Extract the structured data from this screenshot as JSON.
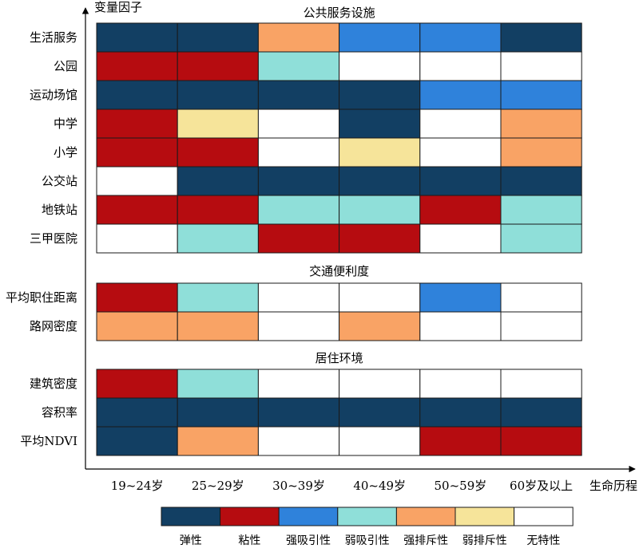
{
  "chart_data": {
    "type": "heatmap",
    "y_axis_label": "变量因子",
    "x_axis_label": "生命历程",
    "columns": [
      "19~24岁",
      "25~29岁",
      "30~39岁",
      "40~49岁",
      "50~59岁",
      "60岁及以上"
    ],
    "legend": [
      {
        "key": "elastic",
        "label": "弹性",
        "color": "#123f63"
      },
      {
        "key": "sticky",
        "label": "粘性",
        "color": "#b60c10"
      },
      {
        "key": "strong_attract",
        "label": "强吸引性",
        "color": "#2f82db"
      },
      {
        "key": "weak_attract",
        "label": "弱吸引性",
        "color": "#8fdfd9"
      },
      {
        "key": "strong_repel",
        "label": "强排斥性",
        "color": "#f9a365"
      },
      {
        "key": "weak_repel",
        "label": "弱排斥性",
        "color": "#f6e49a"
      },
      {
        "key": "none",
        "label": "无特性",
        "color": "#ffffff"
      }
    ],
    "groups": [
      {
        "title": "公共服务设施",
        "rows": [
          {
            "label": "生活服务",
            "values": [
              "elastic",
              "elastic",
              "strong_repel",
              "strong_attract",
              "strong_attract",
              "elastic"
            ]
          },
          {
            "label": "公园",
            "values": [
              "sticky",
              "sticky",
              "weak_attract",
              "none",
              "none",
              "none"
            ]
          },
          {
            "label": "运动场馆",
            "values": [
              "elastic",
              "elastic",
              "elastic",
              "elastic",
              "strong_attract",
              "strong_attract"
            ]
          },
          {
            "label": "中学",
            "values": [
              "sticky",
              "weak_repel",
              "none",
              "elastic",
              "none",
              "strong_repel"
            ]
          },
          {
            "label": "小学",
            "values": [
              "sticky",
              "sticky",
              "none",
              "weak_repel",
              "none",
              "strong_repel"
            ]
          },
          {
            "label": "公交站",
            "values": [
              "none",
              "elastic",
              "elastic",
              "elastic",
              "elastic",
              "elastic"
            ]
          },
          {
            "label": "地铁站",
            "values": [
              "sticky",
              "sticky",
              "weak_attract",
              "weak_attract",
              "sticky",
              "weak_attract"
            ]
          },
          {
            "label": "三甲医院",
            "values": [
              "none",
              "weak_attract",
              "sticky",
              "sticky",
              "none",
              "weak_attract"
            ]
          }
        ]
      },
      {
        "title": "交通便利度",
        "rows": [
          {
            "label": "平均职住距离",
            "values": [
              "sticky",
              "weak_attract",
              "none",
              "none",
              "strong_attract",
              "none"
            ]
          },
          {
            "label": "路网密度",
            "values": [
              "strong_repel",
              "strong_repel",
              "none",
              "strong_repel",
              "none",
              "none"
            ]
          }
        ]
      },
      {
        "title": "居住环境",
        "rows": [
          {
            "label": "建筑密度",
            "values": [
              "sticky",
              "weak_attract",
              "none",
              "none",
              "none",
              "none"
            ]
          },
          {
            "label": "容积率",
            "values": [
              "elastic",
              "elastic",
              "elastic",
              "elastic",
              "elastic",
              "elastic"
            ]
          },
          {
            "label": "平均NDVI",
            "values": [
              "elastic",
              "strong_repel",
              "none",
              "none",
              "sticky",
              "sticky"
            ]
          }
        ]
      }
    ]
  }
}
